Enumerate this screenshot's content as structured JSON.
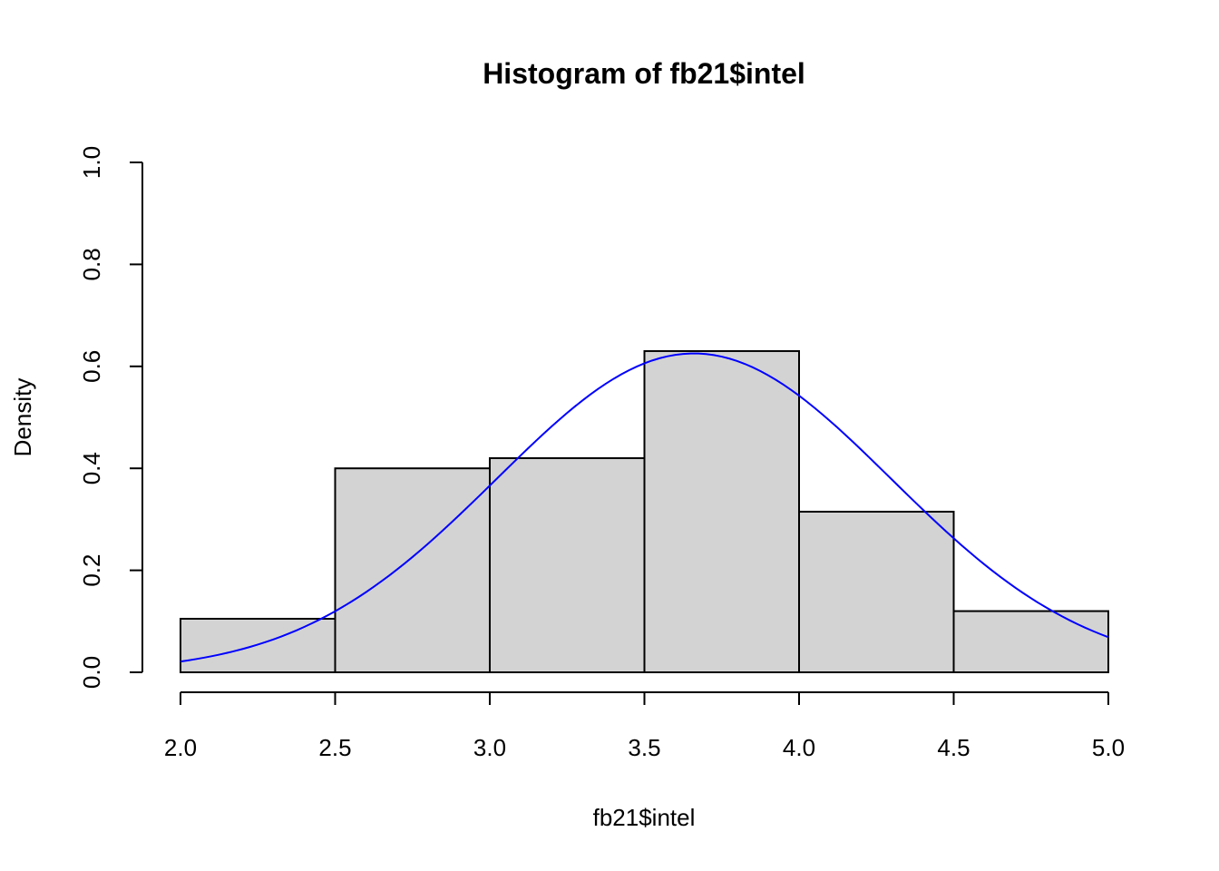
{
  "chart_data": {
    "type": "bar",
    "subtype": "histogram",
    "title": "Histogram of fb21$intel",
    "xlabel": "fb21$intel",
    "ylabel": "Density",
    "xlim": [
      2.0,
      5.0
    ],
    "ylim": [
      0.0,
      1.0
    ],
    "x_ticks": [
      "2.0",
      "2.5",
      "3.0",
      "3.5",
      "4.0",
      "4.5",
      "5.0"
    ],
    "y_ticks": [
      "0.0",
      "0.2",
      "0.4",
      "0.6",
      "0.8",
      "1.0"
    ],
    "bins": [
      {
        "from": 2.0,
        "to": 2.5,
        "density": 0.105
      },
      {
        "from": 2.5,
        "to": 3.0,
        "density": 0.4
      },
      {
        "from": 3.0,
        "to": 3.5,
        "density": 0.42
      },
      {
        "from": 3.5,
        "to": 4.0,
        "density": 0.63
      },
      {
        "from": 4.0,
        "to": 4.5,
        "density": 0.315
      },
      {
        "from": 4.5,
        "to": 5.0,
        "density": 0.12
      }
    ],
    "overlay_curve": {
      "type": "normal-density",
      "mean": 3.66,
      "sd": 0.638,
      "color": "#0000FF"
    },
    "bar_fill": "#D3D3D3",
    "grid": false,
    "legend": "none"
  }
}
